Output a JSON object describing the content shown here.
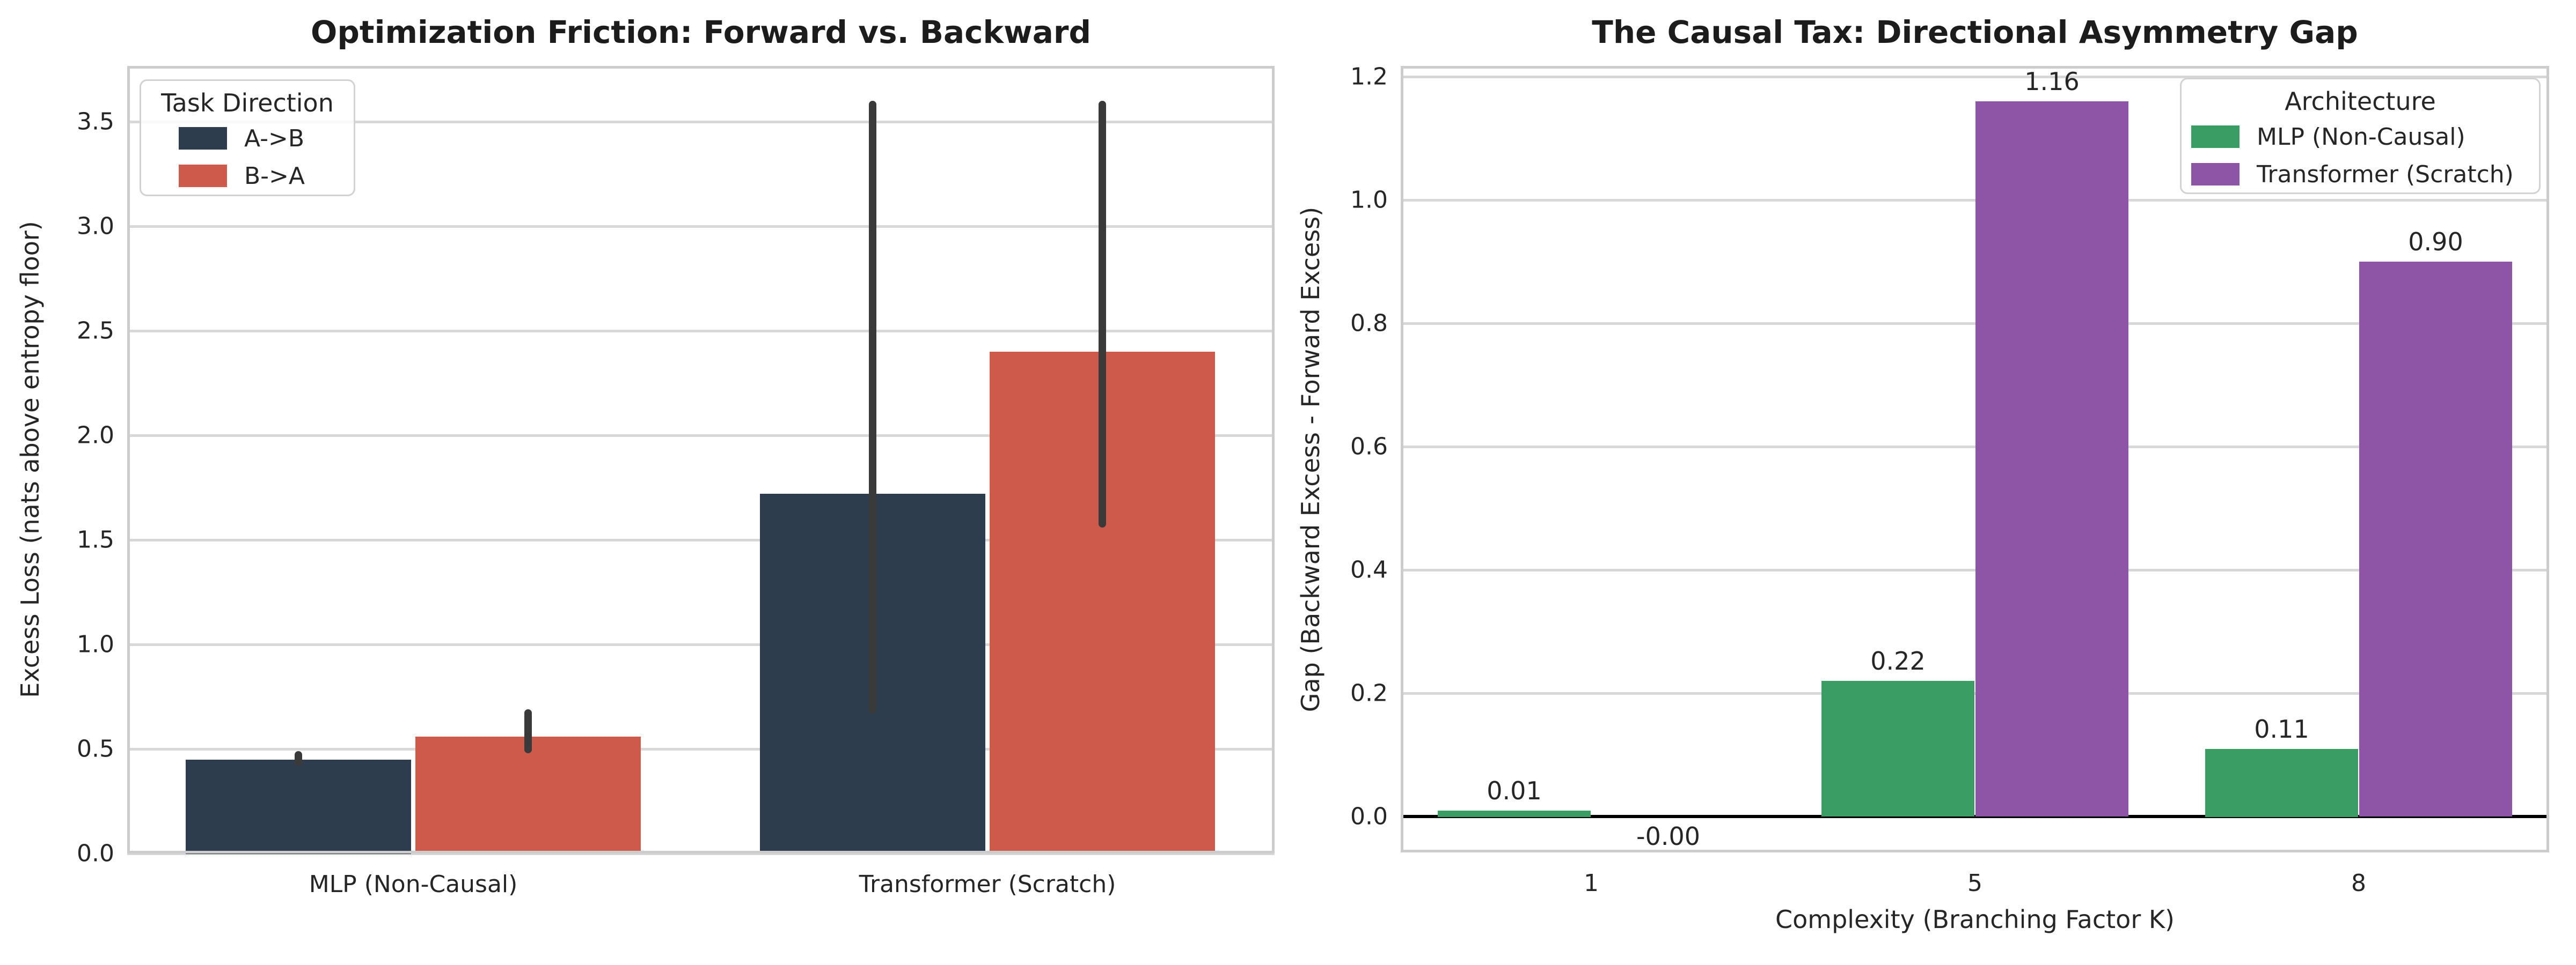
{
  "figure": {
    "background": "#ffffff"
  },
  "colors": {
    "grid": "#d8d8d8",
    "spine": "#cccccc",
    "error_bar": "#3a3a3a",
    "zero_line": "#000000",
    "text": "#262626",
    "navy": "#2e3d4d",
    "coral": "#cd5a4b",
    "green": "#3a9d63",
    "purple": "#8e54a6"
  },
  "chart_data": [
    {
      "type": "bar",
      "title": "Optimization Friction: Forward vs. Backward",
      "ylabel": "Excess Loss (nats above entropy floor)",
      "xlabel": "",
      "legend_title": "Task Direction",
      "legend_position": "upper left",
      "grid": true,
      "categories": [
        "MLP (Non-Causal)",
        "Transformer (Scratch)"
      ],
      "series": [
        {
          "name": "A->B",
          "color": "#2e3d4d",
          "values": [
            0.45,
            1.72
          ],
          "error_low": [
            0.42,
            0.67
          ],
          "error_high": [
            0.49,
            3.6
          ]
        },
        {
          "name": "B->A",
          "color": "#cd5a4b",
          "values": [
            0.56,
            2.4
          ],
          "error_low": [
            0.48,
            1.56
          ],
          "error_high": [
            0.69,
            3.6
          ]
        }
      ],
      "ytick_labels": [
        "0.0",
        "0.5",
        "1.0",
        "1.5",
        "2.0",
        "2.5",
        "3.0",
        "3.5"
      ],
      "ylim": [
        0,
        3.77
      ]
    },
    {
      "type": "bar",
      "title": "The Causal Tax: Directional Asymmetry Gap",
      "ylabel": "Gap (Backward Excess - Forward Excess)",
      "xlabel": "Complexity (Branching Factor K)",
      "legend_title": "Architecture",
      "legend_position": "upper right",
      "grid": true,
      "zero_line": true,
      "categories": [
        "1",
        "5",
        "8"
      ],
      "series": [
        {
          "name": "MLP (Non-Causal)",
          "color": "#3a9d63",
          "values": [
            0.01,
            0.22,
            0.11
          ],
          "bar_labels": [
            "0.01",
            "0.22",
            "0.11"
          ]
        },
        {
          "name": "Transformer (Scratch)",
          "color": "#8e54a6",
          "values": [
            -0.0,
            1.16,
            0.9
          ],
          "bar_labels": [
            "-0.00",
            "1.16",
            "0.90"
          ]
        }
      ],
      "ytick_labels": [
        "0.0",
        "0.2",
        "0.4",
        "0.6",
        "0.8",
        "1.0",
        "1.2"
      ],
      "ylim": [
        -0.06,
        1.22
      ]
    }
  ]
}
